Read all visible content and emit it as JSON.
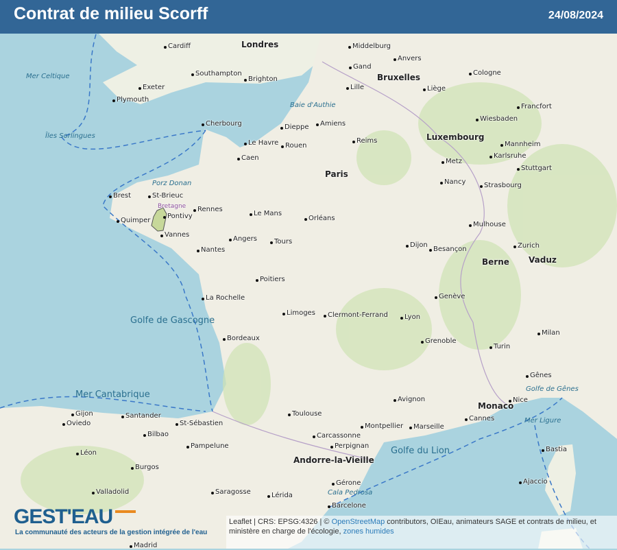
{
  "header": {
    "title": "Contrat de milieu Scorff",
    "date": "24/08/2024"
  },
  "map": {
    "colors": {
      "sea": "#aad3df",
      "land": "#f2efe9",
      "forest": "#cfe3b4",
      "highlight_fill": "#c7d89a",
      "highlight_stroke": "#555555",
      "border": "#3a78c8",
      "header": "#326696"
    },
    "highlighted_area": "Scorff",
    "labels": [
      "Londres",
      "Paris",
      "Bruxelles",
      "Luxembourg",
      "Berne",
      "Monaco",
      "Vaduz",
      "Andorre-la-Vieille",
      "Brest",
      "Quimper",
      "Pontivy",
      "Vannes",
      "St-Brieuc",
      "Rennes",
      "Bretagne",
      "Nantes",
      "Angers",
      "Le Mans",
      "Tours",
      "Orléans",
      "Caen",
      "Le Havre",
      "Rouen",
      "Amiens",
      "Lille",
      "Dieppe",
      "Reims",
      "Metz",
      "Nancy",
      "Strasbourg",
      "Dijon",
      "Besançon",
      "Lyon",
      "Grenoble",
      "Genève",
      "Clermont-Ferrand",
      "Limoges",
      "Poitiers",
      "La Rochelle",
      "Bordeaux",
      "Toulouse",
      "Montpellier",
      "Marseille",
      "Nice",
      "Avignon",
      "Perpignan",
      "Barcelone",
      "Bastia",
      "Ajaccio",
      "Bilbao",
      "Santander",
      "St-Sébastien",
      "Pampelune",
      "Saragosse",
      "Burgos",
      "Valladolid",
      "Madrid",
      "Oviedo",
      "Gijon",
      "Léon",
      "Lérida",
      "Gérone",
      "Mulhouse",
      "Zurich",
      "Turin",
      "Milan",
      "Gênes",
      "Cannes",
      "Carcassonne",
      "Cherbourg",
      "Southampton",
      "Brighton",
      "Exeter",
      "Plymouth",
      "Cardiff",
      "Middelburg",
      "Anvers",
      "Gand",
      "Liège",
      "Cologne",
      "Francfort",
      "Mannheim",
      "Stuttgart",
      "Karlsruhe",
      "Wiesbaden"
    ],
    "seas": [
      "Golfe de Gascogne",
      "Mer Cantabrique",
      "Golfe du Lion",
      "Mer Celtique",
      "Golfe de Gênes",
      "Mer Ligure",
      "Porz Donan",
      "Baie d'Authie",
      "Îles Sorlingues",
      "Cala Pedrosa"
    ]
  },
  "attribution": {
    "prefix": "Leaflet | CRS: EPSG:4326 | © ",
    "osm_link": "OpenStreetMap",
    "text": " contributors, OIEau, animateurs SAGE et contrats de milieu, et ministère en charge de l'écologie, ",
    "zones_link": "zones humides"
  },
  "logo": {
    "text": "GEST'EAU",
    "tagline": "La communauté des acteurs de la gestion intégrée de l'eau"
  }
}
